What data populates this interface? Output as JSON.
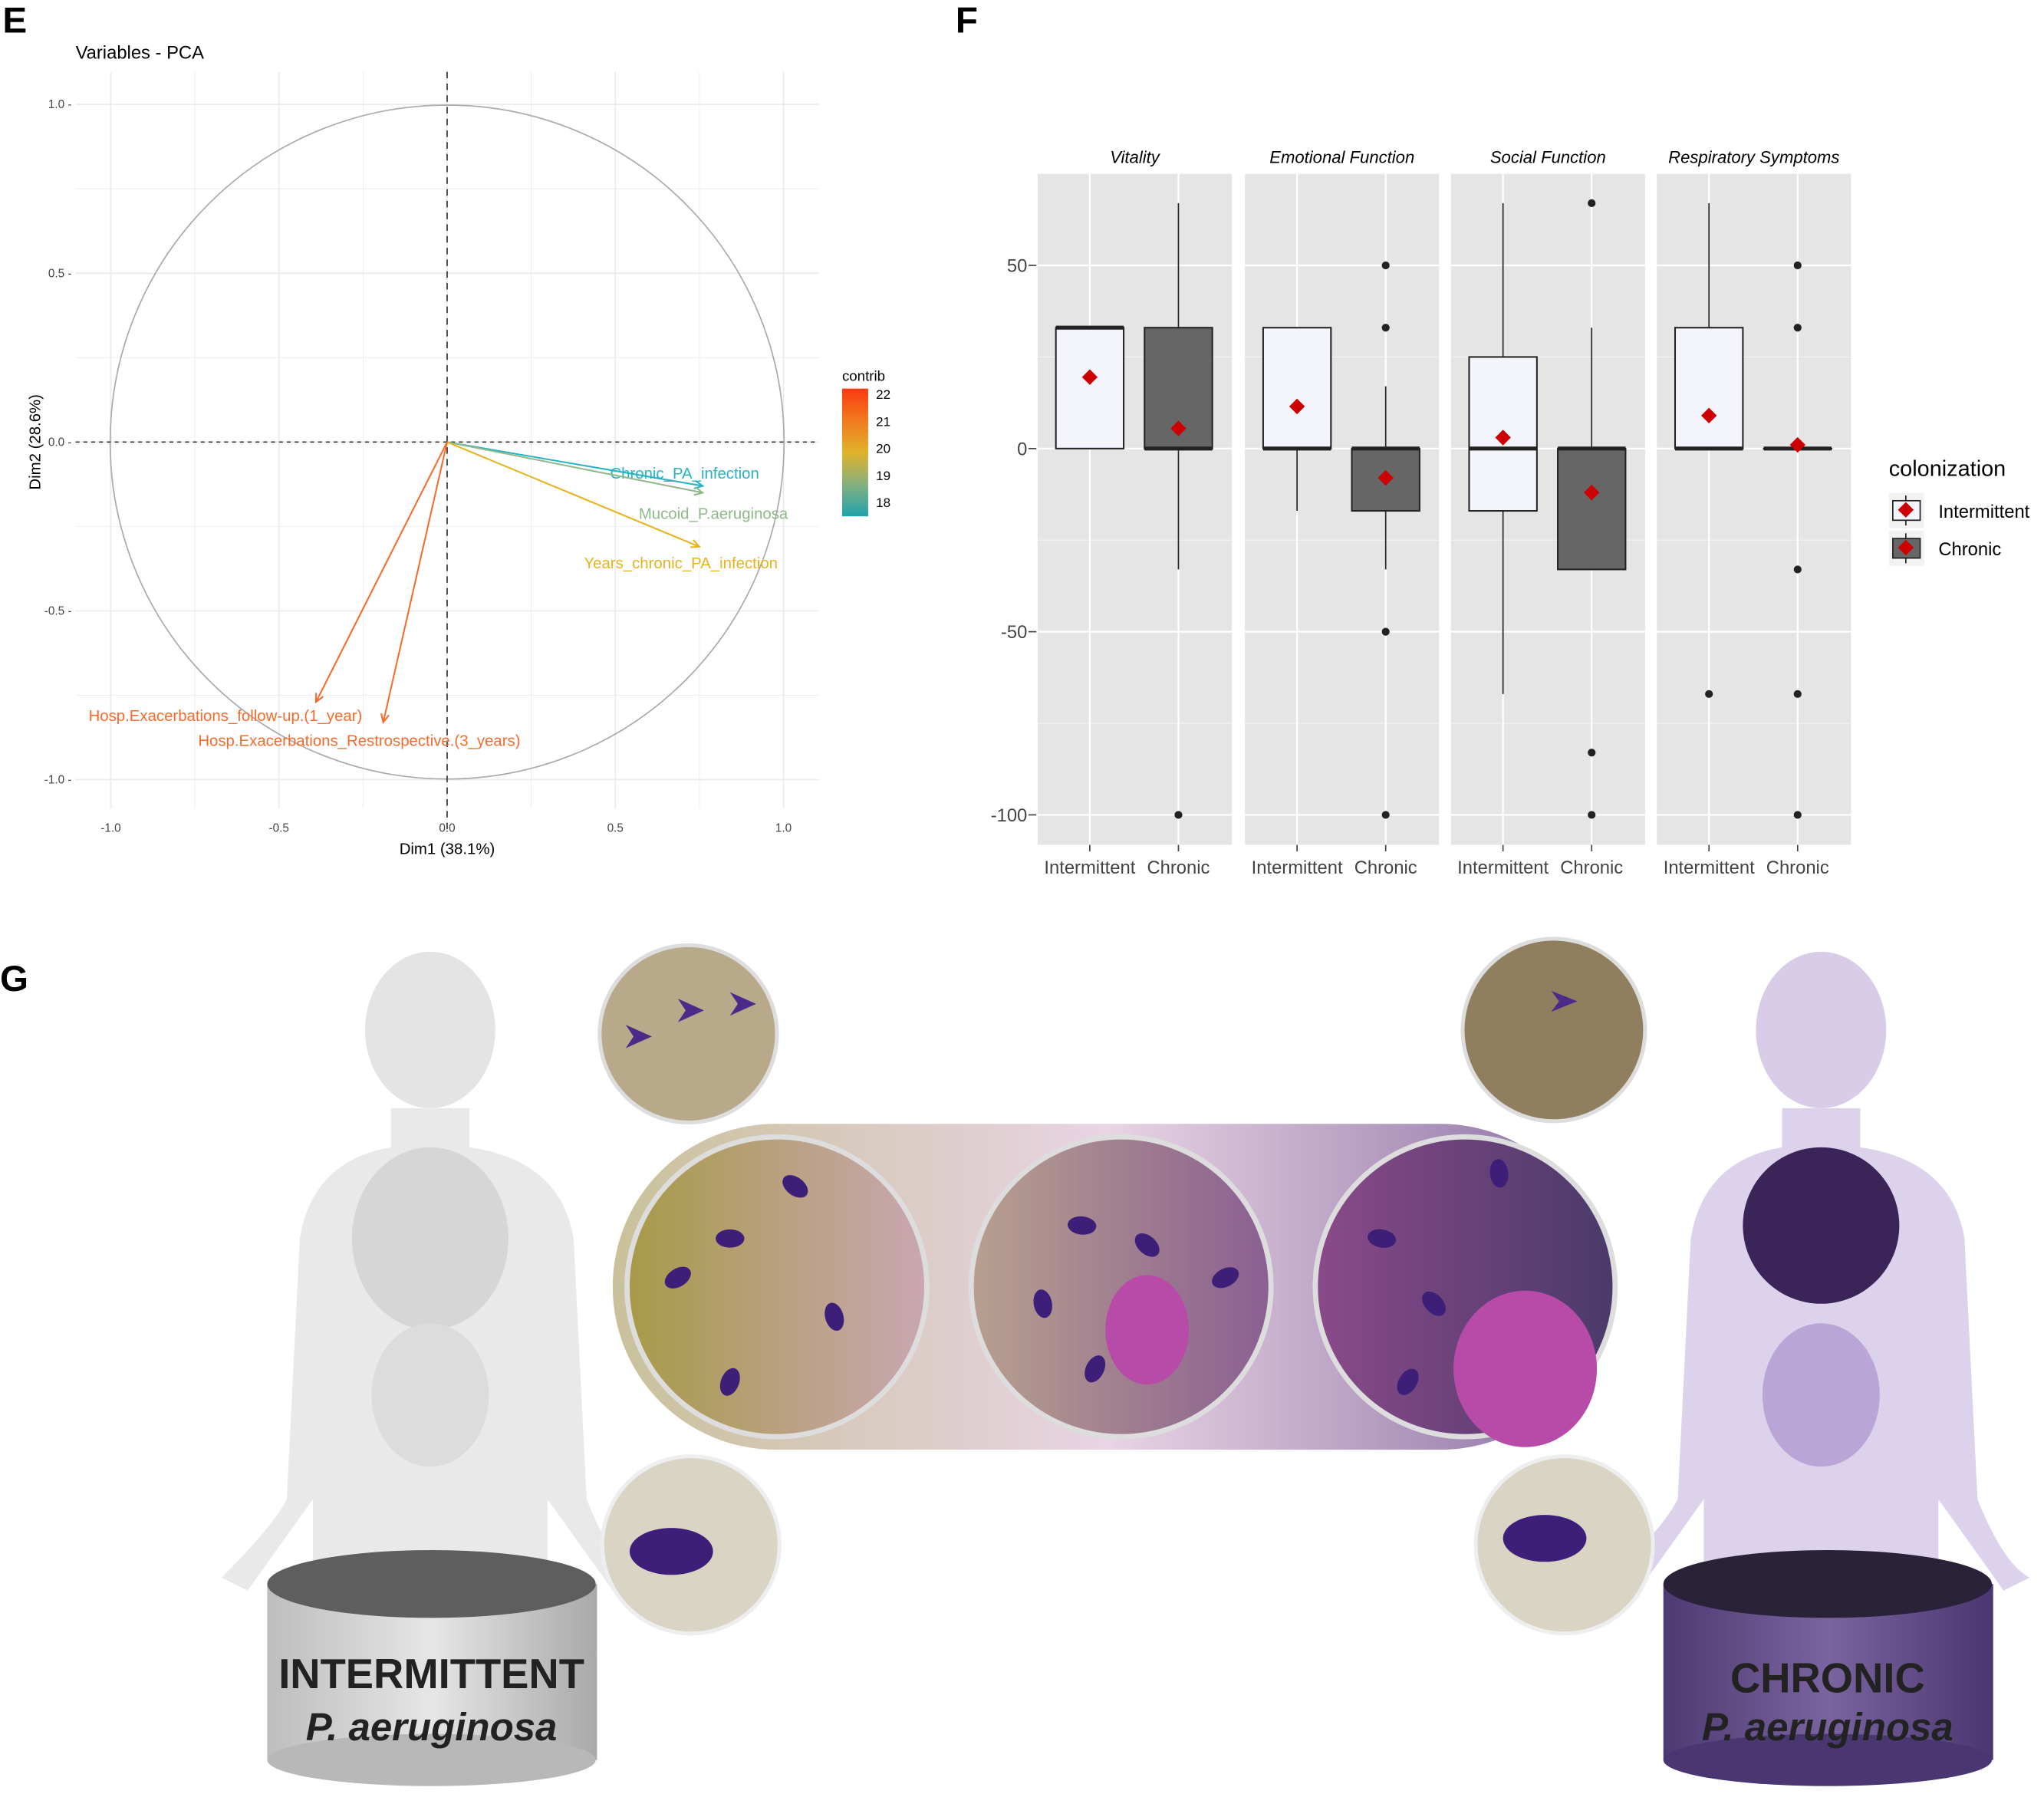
{
  "panel_labels": {
    "e": "E",
    "f": "F",
    "g": "G"
  },
  "chart_data": [
    {
      "type": "scatter",
      "subtype": "pca-variable-correlation-circle",
      "title": "Variables - PCA",
      "xlabel": "Dim1 (38.1%)",
      "ylabel": "Dim2 (28.6%)",
      "xlim": [
        -1.1,
        1.1
      ],
      "ylim": [
        -1.1,
        1.1
      ],
      "xticks": [
        "-1.0",
        "-0.5",
        "0.0",
        "0.5",
        "1.0"
      ],
      "yticks": [
        "1.0",
        "0.5",
        "0.0",
        "-0.5",
        "-1.0"
      ],
      "grid": true,
      "legend": {
        "title": "contrib",
        "placement": "right",
        "range": [
          17.6,
          22.2
        ],
        "ticks": [
          "22",
          "21",
          "20",
          "19",
          "18"
        ],
        "colors": [
          "#1fa3ad",
          "#86b07e",
          "#e0b22a",
          "#f07a1e",
          "#fb3a10"
        ]
      },
      "variables": [
        {
          "name": "Chronic_PA_infection",
          "x": 0.76,
          "y": -0.13,
          "contrib": 17.9,
          "color": "#27b3c4"
        },
        {
          "name": "Mucoid_P.aeruginosa",
          "x": 0.76,
          "y": -0.15,
          "contrib": 18.6,
          "color": "#8fb98a"
        },
        {
          "name": "Years_chronic_PA_infection",
          "x": 0.75,
          "y": -0.31,
          "contrib": 19.9,
          "color": "#e8b21e"
        },
        {
          "name": "Hosp.Exacerbations_follow-up.(1_year)",
          "x": -0.39,
          "y": -0.77,
          "contrib": 21.8,
          "color": "#f86a2a"
        },
        {
          "name": "Hosp.Exacerbations_Restrospective.(3_years)",
          "x": -0.19,
          "y": -0.83,
          "contrib": 21.9,
          "color": "#f86a2a"
        }
      ]
    },
    {
      "type": "box",
      "ylim": [
        -110,
        73
      ],
      "yticks": [
        50,
        0,
        -50,
        -100
      ],
      "categories": [
        "Intermittent",
        "Chronic"
      ],
      "grid": true,
      "legend": {
        "title": "colonization",
        "placement": "right",
        "entries": [
          "Intermittent",
          "Chronic"
        ]
      },
      "colors": {
        "Intermittent": "#f4f4fc",
        "Chronic": "#666666",
        "mean": "#cc0000"
      },
      "facets": [
        {
          "name": "Vitality",
          "boxes": [
            {
              "group": "Intermittent",
              "lower": 0,
              "q1": 0,
              "median": 33,
              "q3": 33,
              "upper": 33,
              "mean": 19.5,
              "outliers": []
            },
            {
              "group": "Chronic",
              "lower": -33,
              "q1": 0,
              "median": 0,
              "q3": 33,
              "upper": 67,
              "mean": 5.5,
              "outliers": [
                -100
              ]
            }
          ]
        },
        {
          "name": "Emotional Function",
          "boxes": [
            {
              "group": "Intermittent",
              "lower": -17,
              "q1": 0,
              "median": 0,
              "q3": 33,
              "upper": 33,
              "mean": 11.5,
              "outliers": []
            },
            {
              "group": "Chronic",
              "lower": -33,
              "q1": -17,
              "median": 0,
              "q3": 0,
              "upper": 17,
              "mean": -8,
              "outliers": [
                50,
                33,
                -50,
                -100
              ]
            }
          ]
        },
        {
          "name": "Social Function",
          "boxes": [
            {
              "group": "Intermittent",
              "lower": -67,
              "q1": -17,
              "median": 0,
              "q3": 25,
              "upper": 67,
              "mean": 3,
              "outliers": []
            },
            {
              "group": "Chronic",
              "lower": -33,
              "q1": -33,
              "median": 0,
              "q3": 0,
              "upper": 33,
              "mean": -12,
              "outliers": [
                67,
                -83,
                -100
              ]
            }
          ]
        },
        {
          "name": "Respiratory Symptoms",
          "boxes": [
            {
              "group": "Intermittent",
              "lower": 0,
              "q1": 0,
              "median": 0,
              "q3": 33,
              "upper": 67,
              "mean": 9,
              "outliers": [
                -67
              ]
            },
            {
              "group": "Chronic",
              "lower": 0,
              "q1": 0,
              "median": 0,
              "q3": 0,
              "upper": 0,
              "mean": 1,
              "outliers": [
                50,
                33,
                -33,
                -67,
                -100
              ]
            }
          ]
        }
      ]
    }
  ],
  "illustration": {
    "left_label_line1": "INTERMITTENT",
    "left_label_line2": "P. aeruginosa",
    "right_label_line1": "CHRONIC",
    "right_label_line2": "P. aeruginosa",
    "colors": {
      "left": "#d9d9d9",
      "right": "#6a5492",
      "bacteria": "#3d1f7a",
      "biofilm": "#b84aa8"
    }
  }
}
